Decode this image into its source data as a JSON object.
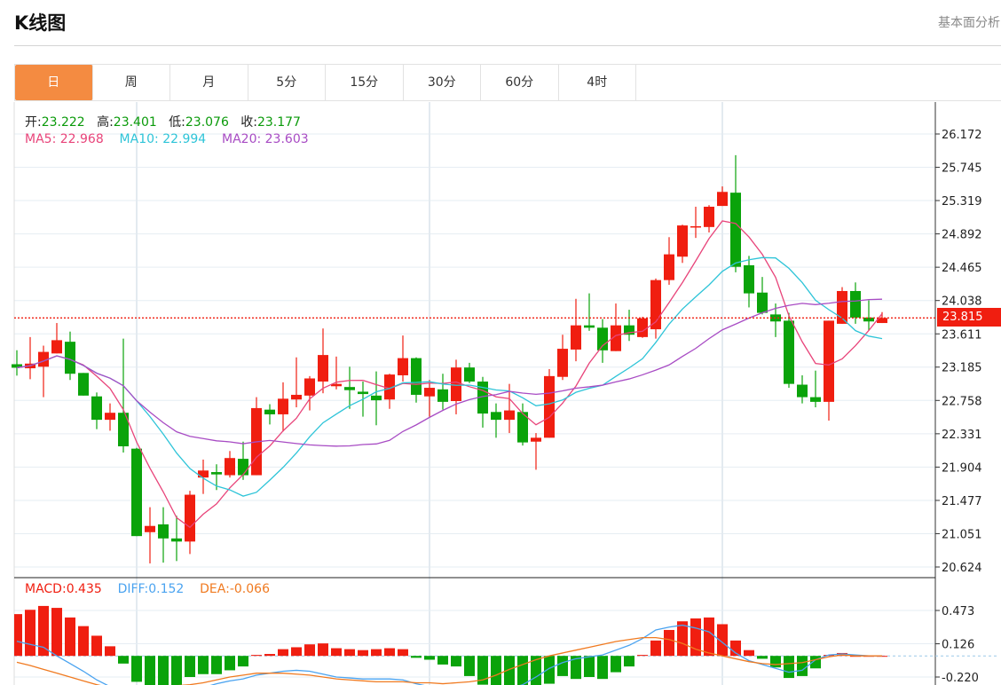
{
  "header": {
    "title": "K线图",
    "right_link": "基本面分析"
  },
  "tabs": [
    {
      "label": "日",
      "active": true
    },
    {
      "label": "周"
    },
    {
      "label": "月"
    },
    {
      "label": "5分"
    },
    {
      "label": "15分"
    },
    {
      "label": "30分"
    },
    {
      "label": "60分"
    },
    {
      "label": "4时"
    }
  ],
  "legend": {
    "open_label": "开:",
    "open": "23.222",
    "high_label": "高:",
    "high": "23.401",
    "low_label": "低:",
    "low": "23.076",
    "close_label": "收:",
    "close": "23.177",
    "ma5_label": "MA5: ",
    "ma5": "22.968",
    "ma10_label": "MA10: ",
    "ma10": "22.994",
    "ma20_label": "MA20: ",
    "ma20": "23.603",
    "macd_label": "MACD:",
    "macd": "0.435",
    "diff_label": "DIFF:",
    "diff": "0.152",
    "dea_label": "DEA:",
    "dea": "-0.066"
  },
  "colors": {
    "up": "#f01e10",
    "down": "#0aa30a",
    "ma5": "#e8447a",
    "ma10": "#2ec4d8",
    "ma20": "#a84cc4",
    "diff": "#4aa3f0",
    "dea": "#f07a20",
    "active_tab": "#f48b41"
  },
  "chart_data": {
    "type": "candlestick",
    "title": "K线图",
    "current_price": "23.815",
    "price_ticks": [
      "26.172",
      "25.745",
      "25.319",
      "24.892",
      "24.465",
      "24.038",
      "23.611",
      "23.185",
      "22.758",
      "22.331",
      "21.904",
      "21.477",
      "21.051",
      "20.624"
    ],
    "ylim": [
      20.55,
      26.45
    ],
    "macd_ticks": [
      "0.473",
      "0.126",
      "-0.220"
    ],
    "macd_ylim": [
      -0.3,
      0.9
    ],
    "ohlc": [
      [
        23.222,
        23.401,
        23.076,
        23.177
      ],
      [
        23.17,
        23.57,
        23.03,
        23.23
      ],
      [
        23.19,
        23.46,
        22.8,
        23.38
      ],
      [
        23.36,
        23.75,
        23.36,
        23.53
      ],
      [
        23.51,
        23.64,
        23.02,
        23.1
      ],
      [
        23.11,
        23.11,
        22.82,
        22.82
      ],
      [
        22.81,
        22.86,
        22.39,
        22.51
      ],
      [
        22.51,
        22.72,
        22.37,
        22.6
      ],
      [
        22.6,
        23.55,
        22.09,
        22.17
      ],
      [
        22.14,
        22.15,
        21.02,
        21.02
      ],
      [
        21.07,
        21.39,
        20.67,
        21.15
      ],
      [
        21.17,
        21.39,
        20.68,
        20.99
      ],
      [
        20.99,
        21.28,
        20.7,
        20.95
      ],
      [
        20.95,
        21.6,
        20.79,
        21.55
      ],
      [
        21.77,
        22.0,
        21.56,
        21.86
      ],
      [
        21.84,
        21.94,
        21.61,
        21.81
      ],
      [
        21.8,
        22.11,
        21.77,
        22.02
      ],
      [
        22.01,
        22.23,
        21.74,
        21.8
      ],
      [
        21.8,
        22.8,
        21.8,
        22.66
      ],
      [
        22.64,
        22.71,
        22.45,
        22.58
      ],
      [
        22.58,
        22.99,
        22.36,
        22.78
      ],
      [
        22.77,
        23.31,
        22.67,
        22.83
      ],
      [
        22.82,
        23.07,
        22.63,
        23.04
      ],
      [
        23.0,
        23.68,
        22.85,
        23.34
      ],
      [
        22.94,
        23.32,
        22.9,
        22.97
      ],
      [
        22.93,
        23.19,
        22.65,
        22.89
      ],
      [
        22.87,
        23.0,
        22.55,
        22.84
      ],
      [
        22.82,
        23.13,
        22.44,
        22.76
      ],
      [
        22.77,
        23.1,
        22.65,
        23.09
      ],
      [
        23.08,
        23.59,
        23.0,
        23.3
      ],
      [
        23.3,
        23.31,
        22.73,
        22.83
      ],
      [
        22.81,
        23.02,
        22.55,
        22.92
      ],
      [
        22.9,
        23.1,
        22.64,
        22.74
      ],
      [
        22.75,
        23.28,
        22.58,
        23.18
      ],
      [
        23.18,
        23.24,
        22.98,
        23.0
      ],
      [
        23.0,
        23.06,
        22.41,
        22.59
      ],
      [
        22.61,
        22.72,
        22.28,
        22.51
      ],
      [
        22.51,
        22.97,
        22.34,
        22.63
      ],
      [
        22.61,
        22.72,
        22.18,
        22.22
      ],
      [
        22.23,
        22.34,
        21.87,
        22.28
      ],
      [
        22.28,
        23.16,
        22.28,
        23.07
      ],
      [
        23.06,
        23.6,
        23.02,
        23.42
      ],
      [
        23.41,
        24.06,
        23.26,
        23.72
      ],
      [
        23.72,
        24.13,
        23.65,
        23.69
      ],
      [
        23.69,
        23.8,
        23.24,
        23.4
      ],
      [
        23.39,
        24.0,
        23.39,
        23.72
      ],
      [
        23.72,
        23.92,
        23.52,
        23.6
      ],
      [
        23.57,
        23.83,
        23.56,
        23.81
      ],
      [
        23.67,
        24.32,
        23.55,
        24.3
      ],
      [
        24.3,
        24.85,
        24.24,
        24.63
      ],
      [
        24.6,
        25.01,
        24.52,
        25.0
      ],
      [
        24.98,
        25.24,
        24.84,
        24.99
      ],
      [
        24.98,
        25.26,
        24.91,
        25.24
      ],
      [
        25.25,
        25.5,
        25.25,
        25.43
      ],
      [
        25.42,
        25.9,
        24.4,
        24.47
      ],
      [
        24.49,
        24.61,
        23.95,
        24.13
      ],
      [
        24.14,
        24.34,
        23.86,
        23.88
      ],
      [
        23.86,
        24.0,
        23.57,
        23.77
      ],
      [
        23.78,
        23.88,
        22.92,
        22.97
      ],
      [
        22.96,
        23.08,
        22.72,
        22.8
      ],
      [
        22.8,
        23.14,
        22.67,
        22.74
      ],
      [
        22.74,
        23.78,
        22.5,
        23.78
      ],
      [
        23.74,
        24.21,
        23.74,
        24.16
      ],
      [
        24.16,
        24.27,
        23.74,
        23.82
      ],
      [
        23.82,
        24.04,
        23.66,
        23.77
      ],
      [
        23.75,
        23.89,
        23.75,
        23.815
      ]
    ],
    "macd": [
      0.435,
      0.48,
      0.52,
      0.5,
      0.4,
      0.31,
      0.21,
      0.1,
      -0.08,
      -0.27,
      -0.32,
      -0.34,
      -0.33,
      -0.22,
      -0.19,
      -0.19,
      -0.15,
      -0.11,
      0.01,
      0.02,
      0.07,
      0.09,
      0.12,
      0.13,
      0.08,
      0.07,
      0.06,
      0.07,
      0.08,
      0.07,
      -0.02,
      -0.04,
      -0.09,
      -0.11,
      -0.21,
      -0.3,
      -0.32,
      -0.32,
      -0.32,
      -0.32,
      -0.29,
      -0.21,
      -0.24,
      -0.22,
      -0.24,
      -0.17,
      -0.11,
      0.01,
      0.16,
      0.27,
      0.36,
      0.39,
      0.4,
      0.33,
      0.16,
      0.06,
      -0.03,
      -0.12,
      -0.23,
      -0.21,
      -0.13,
      0.01,
      0.03,
      0.0,
      0.0,
      0.0
    ],
    "diff": [
      0.152,
      0.12,
      0.09,
      0.0,
      -0.08,
      -0.16,
      -0.25,
      -0.32,
      -0.36,
      -0.42,
      -0.46,
      -0.45,
      -0.42,
      -0.38,
      -0.33,
      -0.29,
      -0.26,
      -0.24,
      -0.2,
      -0.18,
      -0.16,
      -0.15,
      -0.16,
      -0.19,
      -0.22,
      -0.23,
      -0.24,
      -0.24,
      -0.24,
      -0.25,
      -0.29,
      -0.32,
      -0.35,
      -0.38,
      -0.4,
      -0.4,
      -0.38,
      -0.34,
      -0.3,
      -0.22,
      -0.13,
      -0.07,
      -0.03,
      -0.01,
      0.01,
      0.06,
      0.11,
      0.18,
      0.27,
      0.3,
      0.32,
      0.29,
      0.25,
      0.14,
      0.03,
      -0.05,
      -0.09,
      -0.13,
      -0.17,
      -0.15,
      -0.04,
      0.01,
      0.02,
      0.01,
      0.0,
      0.0
    ],
    "dea": [
      -0.066,
      -0.1,
      -0.14,
      -0.18,
      -0.22,
      -0.26,
      -0.3,
      -0.33,
      -0.35,
      -0.36,
      -0.35,
      -0.33,
      -0.31,
      -0.3,
      -0.28,
      -0.25,
      -0.22,
      -0.2,
      -0.18,
      -0.18,
      -0.18,
      -0.19,
      -0.2,
      -0.22,
      -0.24,
      -0.25,
      -0.26,
      -0.27,
      -0.27,
      -0.27,
      -0.28,
      -0.28,
      -0.29,
      -0.28,
      -0.27,
      -0.25,
      -0.2,
      -0.14,
      -0.09,
      -0.04,
      0.0,
      0.03,
      0.06,
      0.09,
      0.12,
      0.15,
      0.17,
      0.19,
      0.19,
      0.17,
      0.13,
      0.07,
      0.03,
      0.0,
      -0.03,
      -0.06,
      -0.08,
      -0.09,
      -0.08,
      -0.07,
      -0.04,
      -0.01,
      0.01,
      0.0,
      0.0,
      0.0
    ],
    "moving_averages": [
      5,
      10,
      20
    ]
  }
}
